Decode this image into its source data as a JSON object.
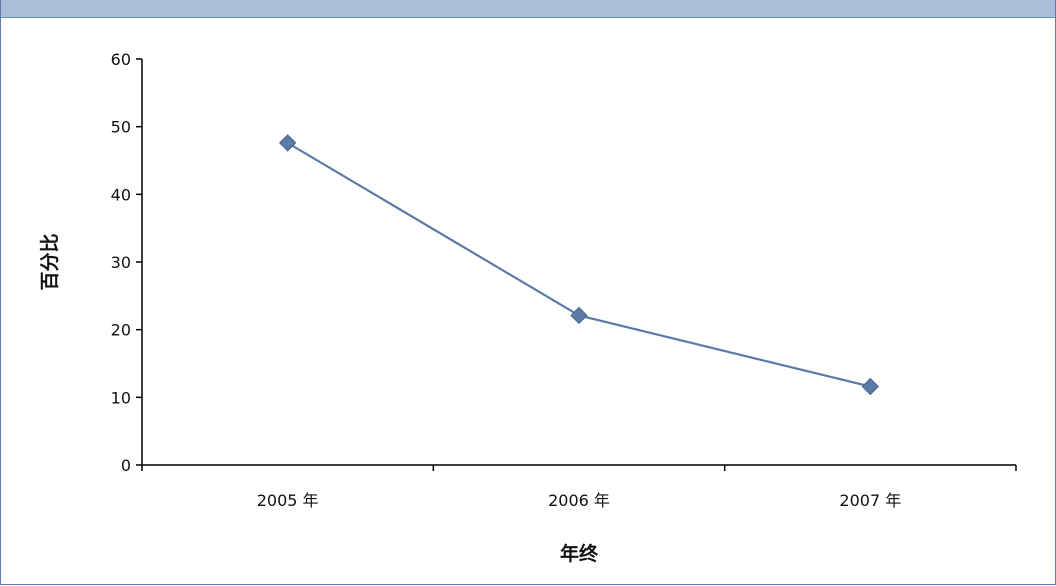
{
  "header": {
    "title": ""
  },
  "chart_data": {
    "type": "line",
    "title": "",
    "xlabel": "年终",
    "ylabel": "百分比",
    "categories": [
      "2005 年",
      "2006 年",
      "2007 年"
    ],
    "series": [
      {
        "values": [
          47.6,
          22.1,
          11.6
        ],
        "color": "#5b7aa8",
        "marker": "diamond"
      }
    ],
    "ylim": [
      0,
      60
    ],
    "yticks": [
      0,
      10,
      20,
      30,
      40,
      50,
      60
    ],
    "grid": false,
    "legend": "none"
  }
}
